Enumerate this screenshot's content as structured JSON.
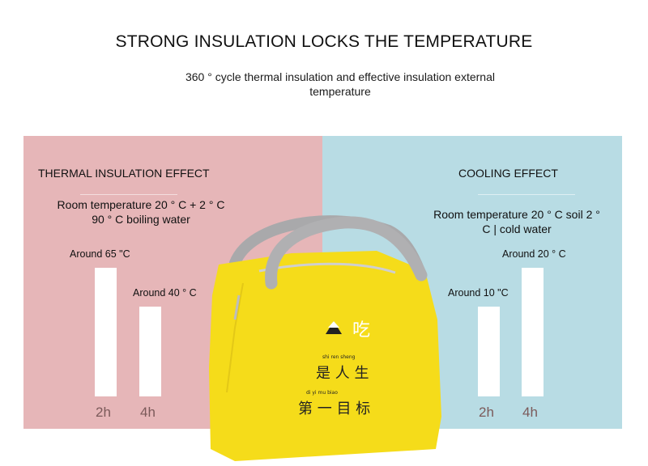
{
  "header": {
    "title": "STRONG INSULATION LOCKS THE TEMPERATURE",
    "subtitle": "360 ° cycle thermal insulation and effective insulation external temperature"
  },
  "colors": {
    "thermal_panel": "#e6b6b8",
    "cooling_panel": "#b8dce4",
    "bar": "#ffffff",
    "bag": "#f5dc1a",
    "handle": "#a9a9ab"
  },
  "chart_data": [
    {
      "type": "bar",
      "title": "THERMAL INSULATION EFFECT",
      "description": "Room temperature 20 ° C + 2 ° C 90 ° C boiling water",
      "categories": [
        "2h",
        "4h"
      ],
      "values": [
        65,
        40
      ],
      "value_labels": [
        "Around 65 \"C",
        "Around 40 ° C"
      ],
      "unit": "°C"
    },
    {
      "type": "bar",
      "title": "COOLING EFFECT",
      "description": "Room temperature 20 ° C soil 2 ° C | cold water",
      "categories": [
        "2h",
        "4h"
      ],
      "values": [
        10,
        20
      ],
      "value_labels": [
        "Around 10 \"C",
        "Around 20 ° C"
      ],
      "unit": "°C"
    }
  ],
  "thermal": {
    "title": "THERMAL INSULATION EFFECT",
    "desc_line1": "Room temperature 20 ° C + 2 ° C",
    "desc_line2": "90 ° C boiling water"
  },
  "cooling": {
    "title": "COOLING EFFECT",
    "desc_line1": "Room temperature 20 ° C soil 2 °",
    "desc_line2": "C | cold water"
  },
  "bag_print": {
    "icon_char": "吃",
    "pinyin_line1": "shi  ren  sheng",
    "line1": "是 人 生",
    "pinyin_line2": "di   yi   mu  biao",
    "line2": "第 一 目 标"
  }
}
